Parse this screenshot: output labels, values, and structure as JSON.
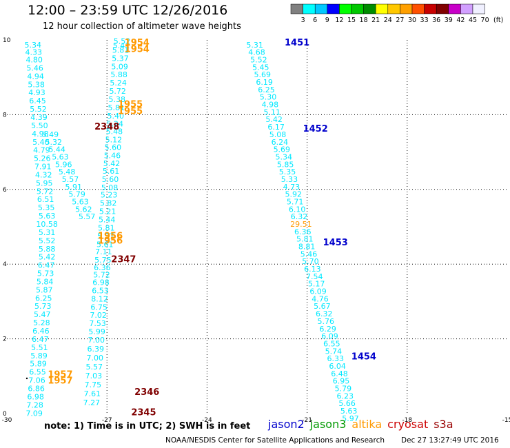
{
  "header": {
    "title": "12:00 – 23:59 UTC 12/26/2016",
    "subtitle": "12 hour collection of altimeter wave heights"
  },
  "colorbar": {
    "labels": [
      "3",
      "6",
      "9",
      "12",
      "15",
      "18",
      "21",
      "24",
      "27",
      "30",
      "33",
      "36",
      "39",
      "42",
      "45",
      "70",
      "(ft)"
    ],
    "colors": [
      "#808080",
      "#00ffff",
      "#00c8ff",
      "#0000ff",
      "#00ff00",
      "#00c800",
      "#008c00",
      "#ffff00",
      "#ffc800",
      "#ffa000",
      "#ff5000",
      "#c80000",
      "#800000",
      "#c800c8",
      "#d2a0ff",
      "#f0f0ff"
    ]
  },
  "footer": {
    "note": "note:  1) Time is in UTC;  2) SWH is in feet",
    "credit": "NOAA/NESDIS Center for Satellite Applications and Research",
    "timestamp": "Dec 27 13:27:49 UTC 2016"
  },
  "legend": [
    {
      "name": "jason2",
      "color": "#0000cc"
    },
    {
      "name": "jason3",
      "color": "#009900"
    },
    {
      "name": "altika",
      "color": "#ff9900"
    },
    {
      "name": "cryosat",
      "color": "#cc0000"
    },
    {
      "name": "s3a",
      "color": "#990000"
    }
  ],
  "chart_data": {
    "type": "scatter",
    "x_ticks": [
      "-30",
      "-27",
      "-24",
      "-21",
      "-18",
      "-15"
    ],
    "y_ticks": [
      "0",
      "2",
      "4",
      "6",
      "8",
      "10"
    ],
    "xlim": [
      -30,
      -15
    ],
    "ylim": [
      0,
      10
    ],
    "grid": true,
    "series": [
      {
        "name": "jason2",
        "color": "#00e8ff",
        "points": [
          [
            -22.57,
            9.8,
            "5.31"
          ],
          [
            -22.51,
            9.6,
            "4.68"
          ],
          [
            -22.45,
            9.4,
            "5.52"
          ],
          [
            -22.39,
            9.2,
            "5.45"
          ],
          [
            -22.34,
            9.0,
            "5.69"
          ],
          [
            -22.28,
            8.8,
            "6.19"
          ],
          [
            -22.22,
            8.6,
            "6.25"
          ],
          [
            -22.17,
            8.4,
            "5.30"
          ],
          [
            -22.11,
            8.2,
            "4.98"
          ],
          [
            -22.05,
            8.0,
            "5.11"
          ],
          [
            -21.99,
            7.8,
            "5.42"
          ],
          [
            -21.93,
            7.6,
            "6.17"
          ],
          [
            -21.88,
            7.4,
            "5.08"
          ],
          [
            -21.82,
            7.2,
            "6.24"
          ],
          [
            -21.76,
            7.0,
            "5.69"
          ],
          [
            -21.7,
            6.8,
            "5.34"
          ],
          [
            -21.65,
            6.6,
            "5.85"
          ],
          [
            -21.59,
            6.4,
            "5.35"
          ],
          [
            -21.53,
            6.2,
            "5.33"
          ],
          [
            -21.47,
            6.0,
            "4.73"
          ],
          [
            -21.41,
            5.8,
            "5.92"
          ],
          [
            -21.36,
            5.6,
            "5.71"
          ],
          [
            -21.3,
            5.4,
            "6.10"
          ],
          [
            -21.24,
            5.2,
            "6.32"
          ],
          [
            -21.18,
            5.0,
            "29.51",
            "#ff9900"
          ],
          [
            -21.13,
            4.8,
            "6.36"
          ],
          [
            -21.07,
            4.6,
            "5.81"
          ],
          [
            -21.01,
            4.4,
            "8.81"
          ],
          [
            -20.95,
            4.2,
            "5.46"
          ],
          [
            -20.9,
            4.0,
            "5.70"
          ],
          [
            -20.84,
            3.8,
            "6.13"
          ],
          [
            -20.78,
            3.6,
            "7.54"
          ],
          [
            -20.72,
            3.4,
            "5.17"
          ],
          [
            -20.67,
            3.2,
            "6.09"
          ],
          [
            -20.61,
            3.0,
            "4.76"
          ],
          [
            -20.55,
            2.8,
            "5.67"
          ],
          [
            -20.49,
            2.6,
            "6.32"
          ],
          [
            -20.44,
            2.4,
            "5.76"
          ],
          [
            -20.38,
            2.2,
            "6.29"
          ],
          [
            -20.32,
            2.0,
            "6.09"
          ],
          [
            -20.26,
            1.8,
            "6.55"
          ],
          [
            -20.21,
            1.6,
            "5.74"
          ],
          [
            -20.15,
            1.4,
            "6.33"
          ],
          [
            -20.09,
            1.2,
            "6.04"
          ],
          [
            -20.03,
            1.0,
            "6.48"
          ],
          [
            -19.98,
            0.8,
            "6.95"
          ],
          [
            -19.92,
            0.6,
            "5.79"
          ],
          [
            -19.86,
            0.4,
            "6.23"
          ],
          [
            -19.8,
            0.2,
            "5.66"
          ],
          [
            -19.75,
            0.0,
            "5.63"
          ],
          [
            -19.7,
            -0.2,
            "5.97"
          ]
        ]
      },
      {
        "name": "altika-asc",
        "color": "#00e8ff",
        "points": [
          [
            -26.55,
            9.9,
            "5.52"
          ],
          [
            -26.57,
            9.78,
            "5.41"
          ],
          [
            -26.59,
            9.66,
            "5.81"
          ],
          [
            -26.6,
            9.44,
            "5.37"
          ],
          [
            -26.62,
            9.22,
            "5.09"
          ],
          [
            -26.64,
            9.0,
            "5.88"
          ],
          [
            -26.66,
            8.78,
            "5.24"
          ],
          [
            -26.68,
            8.56,
            "5.72"
          ],
          [
            -26.7,
            8.34,
            "5.38"
          ],
          [
            -26.72,
            8.12,
            "5.81"
          ],
          [
            -26.74,
            7.9,
            "5.40"
          ],
          [
            -26.76,
            7.68,
            "5.24"
          ],
          [
            -26.78,
            7.48,
            "5.48"
          ],
          [
            -26.8,
            7.26,
            "5.12"
          ],
          [
            -26.82,
            7.06,
            "5.60"
          ],
          [
            -26.84,
            6.84,
            "5.46"
          ],
          [
            -26.86,
            6.62,
            "5.42"
          ],
          [
            -26.88,
            6.42,
            "5.61"
          ],
          [
            -26.9,
            6.2,
            "5.60"
          ],
          [
            -26.92,
            5.98,
            "5.08"
          ],
          [
            -26.94,
            5.78,
            "5.23"
          ],
          [
            -26.96,
            5.56,
            "5.82"
          ],
          [
            -26.98,
            5.34,
            "5.21"
          ],
          [
            -27.0,
            5.12,
            "5.44"
          ],
          [
            -27.02,
            4.9,
            "5.81"
          ],
          [
            -27.04,
            4.68,
            "5.57"
          ],
          [
            -27.06,
            4.46,
            "5.61"
          ]
        ]
      },
      {
        "name": "altika-asc2",
        "color": "#00e8ff",
        "points": [
          [
            -27.1,
            4.26,
            "7.11"
          ],
          [
            -27.12,
            4.04,
            "5.75"
          ],
          [
            -27.14,
            3.84,
            "6.36"
          ],
          [
            -27.16,
            3.64,
            "5.72"
          ],
          [
            -27.18,
            3.44,
            "6.98"
          ],
          [
            -27.2,
            3.22,
            "6.53"
          ],
          [
            -27.22,
            3.0,
            "8.12"
          ],
          [
            -27.24,
            2.78,
            "6.75"
          ],
          [
            -27.26,
            2.56,
            "7.02"
          ],
          [
            -27.28,
            2.34,
            "7.53"
          ],
          [
            -27.3,
            2.12,
            "5.99"
          ],
          [
            -27.32,
            1.9,
            "7.00"
          ],
          [
            -27.34,
            1.66,
            "6.39"
          ],
          [
            -27.36,
            1.42,
            "7.00"
          ],
          [
            -27.38,
            1.18,
            "5.57"
          ],
          [
            -27.4,
            0.94,
            "7.03"
          ],
          [
            -27.42,
            0.7,
            "7.75"
          ],
          [
            -27.44,
            0.46,
            "7.61"
          ],
          [
            -27.46,
            0.22,
            "7.27"
          ]
        ]
      },
      {
        "name": "s3a",
        "color": "#00e8ff",
        "points": [
          [
            -29.22,
            9.8,
            "5.34"
          ],
          [
            -29.2,
            9.6,
            "4.33"
          ],
          [
            -29.18,
            9.4,
            "4.80"
          ],
          [
            -29.16,
            9.18,
            "5.46"
          ],
          [
            -29.14,
            8.96,
            "4.94"
          ],
          [
            -29.12,
            8.74,
            "5.38"
          ],
          [
            -29.1,
            8.52,
            "4.93"
          ],
          [
            -29.08,
            8.3,
            "6.45"
          ],
          [
            -29.06,
            8.08,
            "5.52"
          ],
          [
            -29.04,
            7.86,
            "4.39"
          ],
          [
            -29.02,
            7.64,
            "5.50"
          ],
          [
            -29.0,
            7.42,
            "4.98"
          ],
          [
            -28.98,
            7.2,
            "5.40"
          ],
          [
            -28.96,
            6.98,
            "4.79"
          ],
          [
            -28.94,
            6.76,
            "5.26"
          ],
          [
            -28.92,
            6.54,
            "7.91"
          ],
          [
            -28.9,
            6.32,
            "4.32"
          ],
          [
            -28.88,
            6.1,
            "5.95"
          ],
          [
            -28.86,
            5.88,
            "5.72"
          ],
          [
            -28.84,
            5.66,
            "6.51"
          ],
          [
            -28.82,
            5.44,
            "5.35"
          ],
          [
            -28.8,
            5.22,
            "5.63"
          ],
          [
            -28.8,
            5.0,
            "10.58"
          ],
          [
            -28.8,
            4.78,
            "5.31"
          ],
          [
            -28.8,
            4.56,
            "5.52"
          ],
          [
            -28.8,
            4.34,
            "5.88"
          ],
          [
            -28.8,
            4.12,
            "5.42"
          ],
          [
            -28.82,
            3.9,
            "6.47"
          ],
          [
            -28.84,
            3.68,
            "5.73"
          ],
          [
            -28.86,
            3.46,
            "5.84"
          ],
          [
            -28.88,
            3.24,
            "5.87"
          ],
          [
            -28.9,
            3.02,
            "6.25"
          ],
          [
            -28.92,
            2.8,
            "5.73"
          ],
          [
            -28.94,
            2.58,
            "5.47"
          ],
          [
            -28.96,
            2.36,
            "5.28"
          ],
          [
            -28.98,
            2.14,
            "6.46"
          ],
          [
            -29.0,
            1.92,
            "6.47"
          ],
          [
            -29.02,
            1.7,
            "5.51"
          ],
          [
            -29.04,
            1.48,
            "5.89"
          ],
          [
            -29.06,
            1.26,
            "5.89"
          ],
          [
            -29.08,
            1.04,
            "6.55"
          ],
          [
            -29.1,
            0.82,
            "7.06"
          ],
          [
            -29.12,
            0.6,
            "6.86"
          ],
          [
            -29.14,
            0.38,
            "6.98"
          ],
          [
            -29.16,
            0.16,
            "7.28"
          ],
          [
            -29.18,
            -0.06,
            "7.09"
          ]
        ]
      },
      {
        "name": "cryosat",
        "color": "#00e8ff",
        "points": [
          [
            -28.7,
            7.4,
            "5.49"
          ],
          [
            -28.6,
            7.2,
            "5.32"
          ],
          [
            -28.5,
            7.0,
            "5.44"
          ],
          [
            -28.4,
            6.8,
            "5.63"
          ],
          [
            -28.3,
            6.6,
            "5.96"
          ],
          [
            -28.2,
            6.4,
            "5.48"
          ],
          [
            -28.1,
            6.2,
            "5.57"
          ],
          [
            -28.0,
            6.0,
            "5.91"
          ],
          [
            -27.9,
            5.8,
            "5.79"
          ],
          [
            -27.8,
            5.6,
            "5.63"
          ],
          [
            -27.7,
            5.4,
            "5.62"
          ],
          [
            -27.6,
            5.2,
            "5.57"
          ]
        ]
      }
    ],
    "pass_labels": [
      {
        "text": "1451",
        "x": -21.3,
        "y": 9.85,
        "color": "#0000cc"
      },
      {
        "text": "1452",
        "x": -20.75,
        "y": 7.55,
        "color": "#0000cc"
      },
      {
        "text": "1453",
        "x": -20.15,
        "y": 4.5,
        "color": "#0000cc"
      },
      {
        "text": "1454",
        "x": -19.3,
        "y": 1.45,
        "color": "#0000cc"
      },
      {
        "text": "1954",
        "x": -26.1,
        "y": 9.85,
        "color": "#ff9900"
      },
      {
        "text": "1954",
        "x": -26.1,
        "y": 9.68,
        "color": "#ff9900"
      },
      {
        "text": "1955",
        "x": -26.3,
        "y": 8.2,
        "color": "#ff9900"
      },
      {
        "text": "1955",
        "x": -26.3,
        "y": 8.02,
        "color": "#ff9900"
      },
      {
        "text": "1956",
        "x": -26.9,
        "y": 4.68,
        "color": "#ff9900"
      },
      {
        "text": "1956",
        "x": -26.9,
        "y": 4.55,
        "color": "#ff9900"
      },
      {
        "text": "1957",
        "x": -28.4,
        "y": 0.97,
        "color": "#ff9900"
      },
      {
        "text": "1957",
        "x": -28.4,
        "y": 0.8,
        "color": "#ff9900"
      },
      {
        "text": "2348",
        "x": -27.0,
        "y": 7.6,
        "color": "#800000"
      },
      {
        "text": "2347",
        "x": -26.5,
        "y": 4.05,
        "color": "#800000"
      },
      {
        "text": "2346",
        "x": -25.8,
        "y": 0.5,
        "color": "#800000"
      },
      {
        "text": "2345",
        "x": -25.9,
        "y": -0.05,
        "color": "#800000"
      }
    ]
  }
}
